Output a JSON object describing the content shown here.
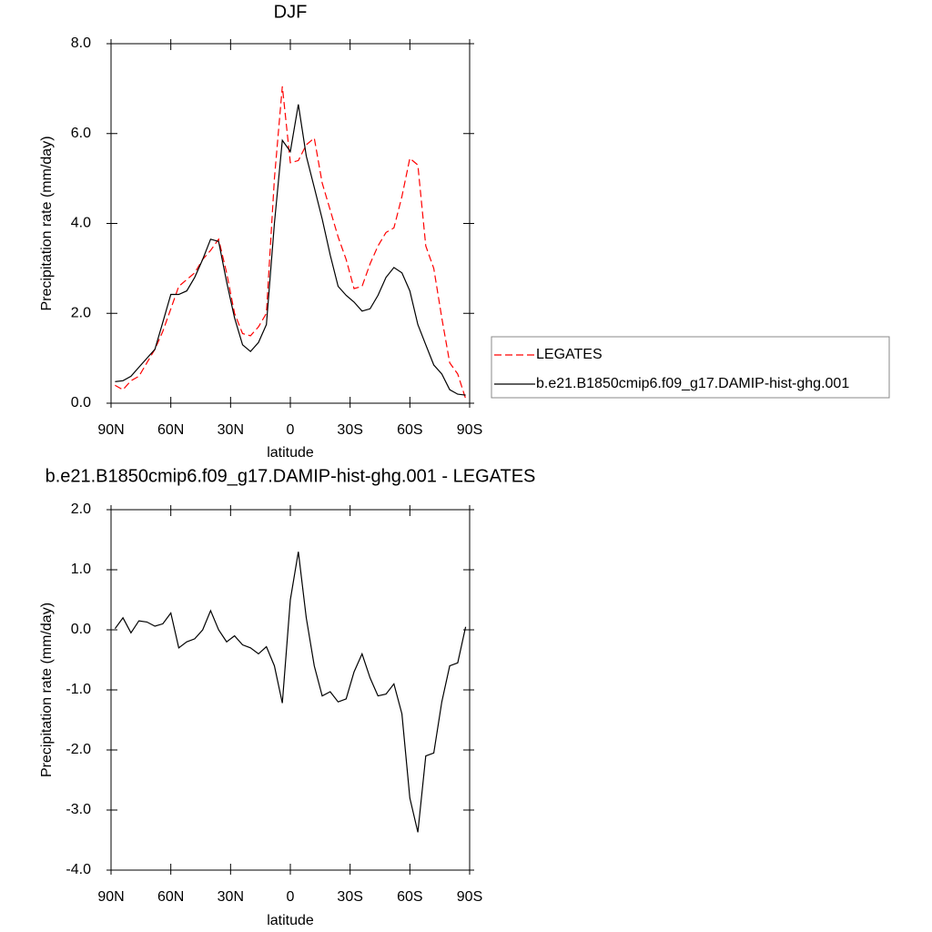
{
  "chart_data": [
    {
      "type": "line",
      "title": "DJF",
      "xlabel": "latitude",
      "ylabel": "Precipitation rate (mm/day)",
      "x": [
        88,
        84,
        80,
        76,
        72,
        68,
        64,
        60,
        56,
        52,
        48,
        44,
        40,
        36,
        32,
        28,
        24,
        20,
        16,
        12,
        8,
        4,
        0,
        -4,
        -8,
        -12,
        -16,
        -20,
        -24,
        -28,
        -32,
        -36,
        -40,
        -44,
        -48,
        -52,
        -56,
        -60,
        -64,
        -68,
        -72,
        -76,
        -80,
        -84,
        -88
      ],
      "xlim": [
        90,
        -90
      ],
      "xticks": [
        {
          "value": 90,
          "label": "90N"
        },
        {
          "value": 60,
          "label": "60N"
        },
        {
          "value": 30,
          "label": "30N"
        },
        0,
        {
          "value": -30,
          "label": "30S"
        },
        {
          "value": -60,
          "label": "60S"
        },
        {
          "value": -90,
          "label": "90S"
        }
      ],
      "ylim": [
        0,
        8
      ],
      "yticks": [
        {
          "value": 0,
          "label": "0.0"
        },
        {
          "value": 2,
          "label": "2.0"
        },
        {
          "value": 4,
          "label": "4.0"
        },
        {
          "value": 6,
          "label": "6.0"
        },
        {
          "value": 8,
          "label": "8.0"
        }
      ],
      "legend": "right",
      "series": [
        {
          "name": "LEGATES",
          "color": "#ff0000",
          "linestyle": "dashed",
          "values": [
            0.4,
            0.3,
            0.5,
            0.6,
            0.9,
            1.2,
            1.6,
            2.1,
            2.6,
            2.75,
            2.9,
            3.2,
            3.4,
            3.65,
            2.9,
            2.0,
            1.55,
            1.5,
            1.7,
            2.0,
            5.0,
            7.05,
            5.35,
            5.4,
            5.75,
            5.9,
            4.9,
            4.3,
            3.7,
            3.2,
            2.55,
            2.6,
            3.1,
            3.5,
            3.8,
            3.9,
            4.6,
            5.45,
            5.3,
            3.5,
            3.0,
            1.9,
            0.9,
            0.65,
            0.1
          ]
        },
        {
          "name": "b.e21.B1850cmip6.f09_g17.DAMIP-hist-ghg.001",
          "color": "#000000",
          "linestyle": "solid",
          "values": [
            0.48,
            0.5,
            0.6,
            0.8,
            1.0,
            1.2,
            1.8,
            2.42,
            2.42,
            2.5,
            2.8,
            3.2,
            3.65,
            3.6,
            2.7,
            1.9,
            1.3,
            1.15,
            1.35,
            1.75,
            4.0,
            5.85,
            5.6,
            6.65,
            5.5,
            4.8,
            4.1,
            3.3,
            2.6,
            2.4,
            2.25,
            2.05,
            2.1,
            2.4,
            2.8,
            3.02,
            2.9,
            2.5,
            1.75,
            1.3,
            0.85,
            0.65,
            0.3,
            0.2,
            0.18
          ]
        }
      ]
    },
    {
      "type": "line",
      "title": "b.e21.B1850cmip6.f09_g17.DAMIP-hist-ghg.001 - LEGATES",
      "xlabel": "latitude",
      "ylabel": "Precipitation rate (mm/day)",
      "x": [
        88,
        84,
        80,
        76,
        72,
        68,
        64,
        60,
        56,
        52,
        48,
        44,
        40,
        36,
        32,
        28,
        24,
        20,
        16,
        12,
        8,
        4,
        0,
        -4,
        -8,
        -12,
        -16,
        -20,
        -24,
        -28,
        -32,
        -36,
        -40,
        -44,
        -48,
        -52,
        -56,
        -60,
        -64,
        -68,
        -72,
        -76,
        -80,
        -84,
        -88
      ],
      "xlim": [
        90,
        -90
      ],
      "xticks": [
        {
          "value": 90,
          "label": "90N"
        },
        {
          "value": 60,
          "label": "60N"
        },
        {
          "value": 30,
          "label": "30N"
        },
        0,
        {
          "value": -30,
          "label": "30S"
        },
        {
          "value": -60,
          "label": "60S"
        },
        {
          "value": -90,
          "label": "90S"
        }
      ],
      "ylim": [
        -4,
        2
      ],
      "yticks": [
        {
          "value": -4,
          "label": "-4.0"
        },
        {
          "value": -3,
          "label": "-3.0"
        },
        {
          "value": -2,
          "label": "-2.0"
        },
        {
          "value": -1,
          "label": "-1.0"
        },
        {
          "value": 0,
          "label": "0.0"
        },
        {
          "value": 1,
          "label": "1.0"
        },
        {
          "value": 2,
          "label": "2.0"
        }
      ],
      "series": [
        {
          "color": "#000000",
          "linestyle": "solid",
          "values": [
            0.02,
            0.2,
            -0.05,
            0.15,
            0.13,
            0.06,
            0.1,
            0.28,
            -0.3,
            -0.2,
            -0.15,
            0.0,
            0.32,
            0.0,
            -0.2,
            -0.1,
            -0.25,
            -0.3,
            -0.4,
            -0.28,
            -0.6,
            -1.22,
            0.5,
            1.3,
            0.2,
            -0.6,
            -1.1,
            -1.03,
            -1.2,
            -1.15,
            -0.7,
            -0.4,
            -0.8,
            -1.1,
            -1.07,
            -0.9,
            -1.4,
            -2.8,
            -3.37,
            -2.1,
            -2.05,
            -1.2,
            -0.6,
            -0.55,
            0.05
          ]
        }
      ]
    }
  ]
}
